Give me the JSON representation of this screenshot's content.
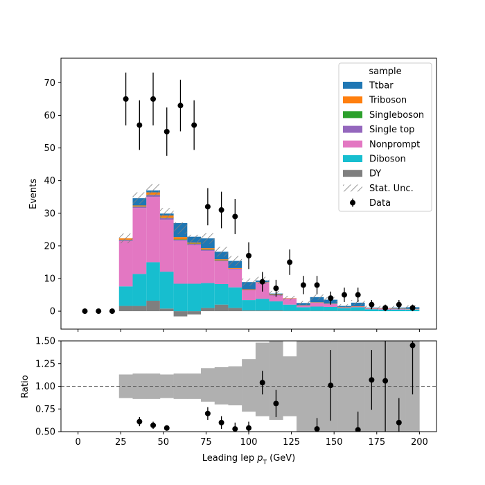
{
  "chart_data": [
    {
      "type": "bar",
      "subtype": "stacked-histogram",
      "xlabel_main": "Leading lep ",
      "xlabel_italic": "p",
      "xlabel_sub": "T",
      "xlabel_unit": " (GeV)",
      "ylabel": "Events",
      "xlim": [
        -10,
        210
      ],
      "ylim": [
        -5.5,
        77.5
      ],
      "yticks": [
        0,
        10,
        20,
        30,
        40,
        50,
        60,
        70
      ],
      "x_bin_edges": [
        24,
        32,
        40,
        48,
        56,
        64,
        72,
        80,
        88,
        96,
        104,
        112,
        120,
        128,
        136,
        144,
        152,
        160,
        168,
        176,
        184,
        192,
        200
      ],
      "legend": {
        "title": "sample",
        "placement": "top-right"
      },
      "series": [
        {
          "name": "DY",
          "color": "#7f7f7f",
          "values": [
            1.6,
            1.6,
            3.2,
            0.8,
            -1.6,
            -1.0,
            1.0,
            2.0,
            1.0,
            0.2,
            0.2,
            0.2,
            0.1,
            0.1,
            0.1,
            0.1,
            0.1,
            0.1,
            0.0,
            0.0,
            0.0,
            0.0
          ]
        },
        {
          "name": "Diboson",
          "color": "#17becf",
          "values": [
            6.0,
            9.8,
            11.8,
            11.3,
            8.4,
            8.4,
            7.6,
            6.3,
            6.3,
            3.2,
            3.6,
            2.8,
            1.9,
            1.1,
            1.3,
            1.2,
            0.8,
            1.1,
            0.6,
            0.5,
            0.5,
            0.5
          ]
        },
        {
          "name": "Nonprompt",
          "color": "#e377c2",
          "values": [
            13.9,
            20.2,
            20.0,
            15.9,
            13.2,
            11.9,
            9.9,
            7.0,
            5.5,
            3.0,
            4.9,
            1.8,
            1.8,
            0.5,
            1.2,
            0.9,
            0.2,
            0.2,
            0.2,
            0.3,
            0.2,
            0.1
          ]
        },
        {
          "name": "Single top",
          "color": "#9467bd",
          "values": [
            0.3,
            0.4,
            0.6,
            0.5,
            0.3,
            0.3,
            0.3,
            0.2,
            0.2,
            0.1,
            0.1,
            0.1,
            0.1,
            0.0,
            0.0,
            0.0,
            0.0,
            0.0,
            0.0,
            0.0,
            0.0,
            0.0
          ]
        },
        {
          "name": "Singleboson",
          "color": "#2ca02c",
          "values": [
            0.1,
            0.1,
            0.1,
            0.1,
            0.1,
            0.1,
            0.1,
            0.1,
            0.0,
            0.0,
            0.0,
            0.0,
            0.0,
            0.0,
            0.0,
            0.0,
            0.0,
            0.0,
            0.0,
            0.0,
            0.0,
            0.0
          ]
        },
        {
          "name": "Triboson",
          "color": "#ff7f0e",
          "values": [
            0.4,
            0.3,
            0.7,
            0.7,
            0.7,
            0.3,
            0.4,
            0.3,
            0.2,
            0.2,
            0.1,
            0.2,
            0.1,
            0.1,
            0.1,
            0.1,
            0.1,
            0.1,
            0.1,
            0.1,
            0.1,
            0.1
          ]
        },
        {
          "name": "Ttbar",
          "color": "#1f77b4",
          "values": [
            0.0,
            2.2,
            0.6,
            0.6,
            4.3,
            1.8,
            3.0,
            2.3,
            2.2,
            2.2,
            0.5,
            0.3,
            0.0,
            0.7,
            1.6,
            1.2,
            0.4,
            1.1,
            0.2,
            0.1,
            0.3,
            0.5
          ]
        }
      ],
      "stat_unc": {
        "name": "Stat. Unc.",
        "half_width": [
          1.5,
          1.8,
          1.9,
          1.7,
          1.8,
          1.6,
          1.6,
          1.5,
          1.5,
          1.1,
          1.1,
          0.8,
          0.7,
          0.6,
          0.8,
          0.8,
          0.5,
          0.8,
          0.5,
          0.6,
          0.5,
          0.6
        ]
      },
      "data": {
        "name": "Data",
        "x": [
          4,
          12,
          20,
          28,
          36,
          44,
          52,
          60,
          68,
          76,
          84,
          92,
          100,
          108,
          116,
          124,
          132,
          140,
          148,
          156,
          164,
          172,
          180,
          188,
          196
        ],
        "y": [
          0,
          0,
          0,
          65,
          57,
          65,
          55,
          63,
          57,
          32,
          31,
          29,
          17,
          9,
          7,
          15,
          8,
          8,
          4,
          5,
          5,
          2,
          1,
          2,
          1
        ],
        "err": [
          0,
          0,
          0,
          8.1,
          7.6,
          8.1,
          7.4,
          7.9,
          7.6,
          5.7,
          5.6,
          5.4,
          4.1,
          3.0,
          2.6,
          3.9,
          2.8,
          2.8,
          2.0,
          2.2,
          2.2,
          1.4,
          1.0,
          1.4,
          1.0
        ]
      }
    },
    {
      "type": "scatter",
      "subtype": "ratio-panel",
      "ylabel": "Ratio",
      "xlabel_main": "Leading lep ",
      "xlabel_italic": "p",
      "xlabel_sub": "T",
      "xlabel_unit": " (GeV)",
      "xlim": [
        -10,
        210
      ],
      "ylim": [
        0.5,
        1.5
      ],
      "xticks": [
        0,
        25,
        50,
        75,
        100,
        125,
        150,
        175,
        200
      ],
      "yticks": [
        0.5,
        0.75,
        1.0,
        1.25,
        1.5
      ],
      "ytick_labels": [
        "0.50",
        "0.75",
        "1.00",
        "1.25",
        "1.50"
      ],
      "reference_line": 1.0,
      "unc_band": {
        "lo": [
          0.87,
          0.86,
          0.86,
          0.87,
          0.86,
          0.86,
          0.83,
          0.8,
          0.79,
          0.72,
          0.67,
          0.63,
          0.67,
          0.35,
          0.35,
          0.17,
          0.0,
          0.0,
          0.0,
          0.0,
          0.0,
          0.0
        ],
        "hi": [
          1.13,
          1.14,
          1.14,
          1.13,
          1.14,
          1.14,
          1.2,
          1.21,
          1.22,
          1.3,
          1.48,
          1.55,
          1.33,
          1.65,
          1.65,
          1.83,
          2.0,
          2.0,
          2.0,
          2.0,
          2.0,
          2.0
        ]
      },
      "points": {
        "x": [
          36,
          44,
          52,
          76,
          84,
          92,
          100,
          108,
          116,
          140,
          148,
          164,
          172,
          180,
          188,
          196
        ],
        "y": [
          0.61,
          0.57,
          0.54,
          0.7,
          0.6,
          0.53,
          0.54,
          1.04,
          0.81,
          0.53,
          1.01,
          0.52,
          1.07,
          1.06,
          0.6,
          1.45
        ],
        "err": [
          0.05,
          0.04,
          0.03,
          0.07,
          0.07,
          0.07,
          0.07,
          0.13,
          0.15,
          0.12,
          0.39,
          0.2,
          0.33,
          1.1,
          0.27,
          0.54
        ]
      }
    }
  ]
}
